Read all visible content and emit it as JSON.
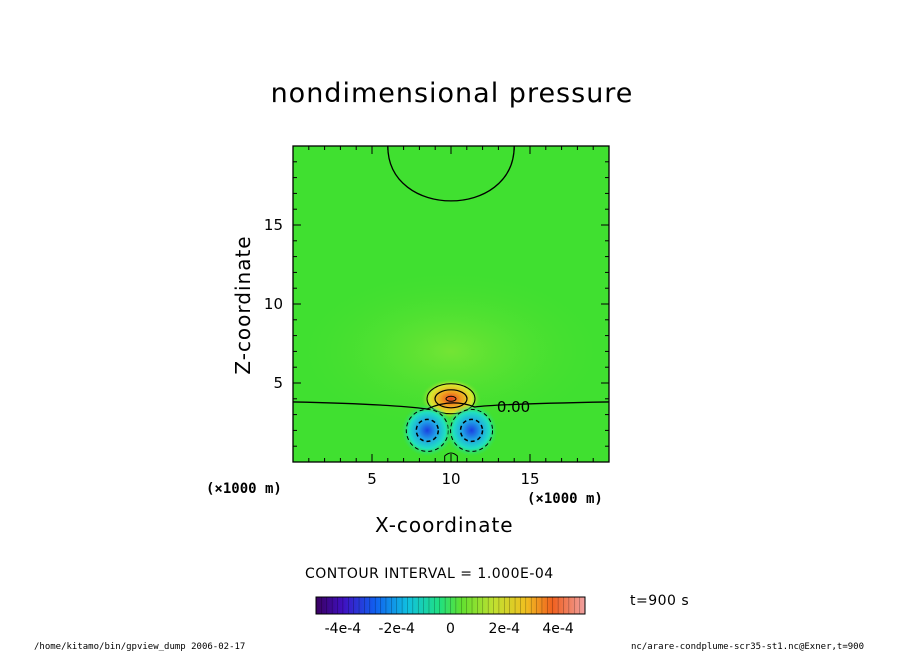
{
  "chart_data": {
    "type": "heatmap",
    "title": "nondimensional pressure",
    "xlabel": "X-coordinate",
    "ylabel": "Z-coordinate",
    "x_unit": "(×1000 m)",
    "y_unit": "(×1000 m)",
    "xlim": [
      0,
      20
    ],
    "ylim": [
      0,
      20
    ],
    "x_ticks": [
      "5",
      "10",
      "15"
    ],
    "y_ticks": [
      "5",
      "10",
      "15"
    ],
    "x_tick_values": [
      5,
      10,
      15
    ],
    "y_tick_values": [
      5,
      10,
      15
    ],
    "contour_label": "0.00",
    "contour_interval": "CONTOUR INTERVAL = 1.000E-04",
    "time_label": "t=900 s",
    "colorbar_ticks": [
      "-4e-4",
      "-2e-4",
      "0",
      "2e-4",
      "4e-4"
    ],
    "colorbar_tick_values": [
      -0.0004,
      -0.0002,
      0,
      0.0002,
      0.0004
    ],
    "colorbar_range": [
      -0.0005,
      0.0005
    ],
    "features": [
      {
        "kind": "positive-max",
        "x": 10.0,
        "z": 4.0
      },
      {
        "kind": "negative-min",
        "x": 8.5,
        "z": 2.0
      },
      {
        "kind": "negative-min",
        "x": 11.3,
        "z": 2.0
      }
    ],
    "zero_contour_z": 3.8,
    "top_contour": {
      "x_start": 6.0,
      "x_end": 14.0,
      "z_min": 16.0
    }
  },
  "footer": {
    "left": "/home/kitamo/bin/gpview_dump  2006-02-17",
    "right": "nc/arare-condplume-scr35-st1.nc@Exner,t=900"
  }
}
